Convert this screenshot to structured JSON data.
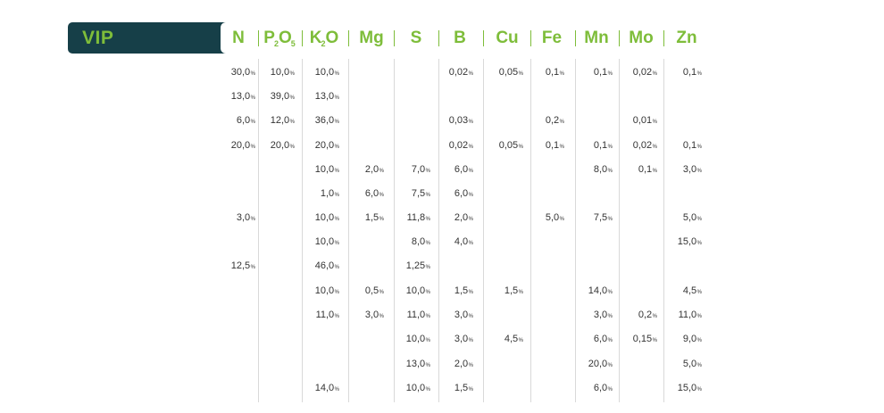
{
  "brand": {
    "label": "VIP",
    "band_color": "#163f48",
    "accent_color": "#7ebd3a"
  },
  "columns": [
    {
      "key": "N",
      "label": "N"
    },
    {
      "key": "P2O5",
      "label": "P",
      "sub1": "2",
      "mid": "O",
      "sub2": "5"
    },
    {
      "key": "K2O",
      "label": "K",
      "sub1": "2",
      "mid": "O"
    },
    {
      "key": "Mg",
      "label": "Mg"
    },
    {
      "key": "S",
      "label": "S"
    },
    {
      "key": "B",
      "label": "B"
    },
    {
      "key": "Cu",
      "label": "Cu"
    },
    {
      "key": "Fe",
      "label": "Fe"
    },
    {
      "key": "Mn",
      "label": "Mn"
    },
    {
      "key": "Mo",
      "label": "Mo"
    },
    {
      "key": "Zn",
      "label": "Zn"
    }
  ],
  "unit": "%",
  "rows": [
    [
      "30,0",
      "10,0",
      "10,0",
      "",
      "",
      "0,02",
      "0,05",
      "0,1",
      "0,1",
      "0,02",
      "0,1"
    ],
    [
      "13,0",
      "39,0",
      "13,0",
      "",
      "",
      "",
      "",
      "",
      "",
      "",
      ""
    ],
    [
      "6,0",
      "12,0",
      "36,0",
      "",
      "",
      "0,03",
      "",
      "0,2",
      "",
      "0,01",
      ""
    ],
    [
      "20,0",
      "20,0",
      "20,0",
      "",
      "",
      "0,02",
      "0,05",
      "0,1",
      "0,1",
      "0,02",
      "0,1"
    ],
    [
      "",
      "",
      "10,0",
      "2,0",
      "7,0",
      "6,0",
      "",
      "",
      "8,0",
      "0,1",
      "3,0"
    ],
    [
      "",
      "",
      "1,0",
      "6,0",
      "7,5",
      "6,0",
      "",
      "",
      "",
      "",
      ""
    ],
    [
      "3,0",
      "",
      "10,0",
      "1,5",
      "11,8",
      "2,0",
      "",
      "5,0",
      "7,5",
      "",
      "5,0"
    ],
    [
      "",
      "",
      "10,0",
      "",
      "8,0",
      "4,0",
      "",
      "",
      "",
      "",
      "15,0"
    ],
    [
      "12,5",
      "",
      "46,0",
      "",
      "1,25",
      "",
      "",
      "",
      "",
      "",
      ""
    ],
    [
      "",
      "",
      "10,0",
      "0,5",
      "10,0",
      "1,5",
      "1,5",
      "",
      "14,0",
      "",
      "4,5"
    ],
    [
      "",
      "",
      "11,0",
      "3,0",
      "11,0",
      "3,0",
      "",
      "",
      "3,0",
      "0,2",
      "11,0"
    ],
    [
      "",
      "",
      "",
      "",
      "10,0",
      "3,0",
      "4,5",
      "",
      "6,0",
      "0,15",
      "9,0"
    ],
    [
      "",
      "",
      "",
      "",
      "13,0",
      "2,0",
      "",
      "",
      "20,0",
      "",
      "5,0"
    ],
    [
      "",
      "",
      "14,0",
      "",
      "10,0",
      "1,5",
      "",
      "",
      "6,0",
      "",
      "15,0"
    ]
  ]
}
